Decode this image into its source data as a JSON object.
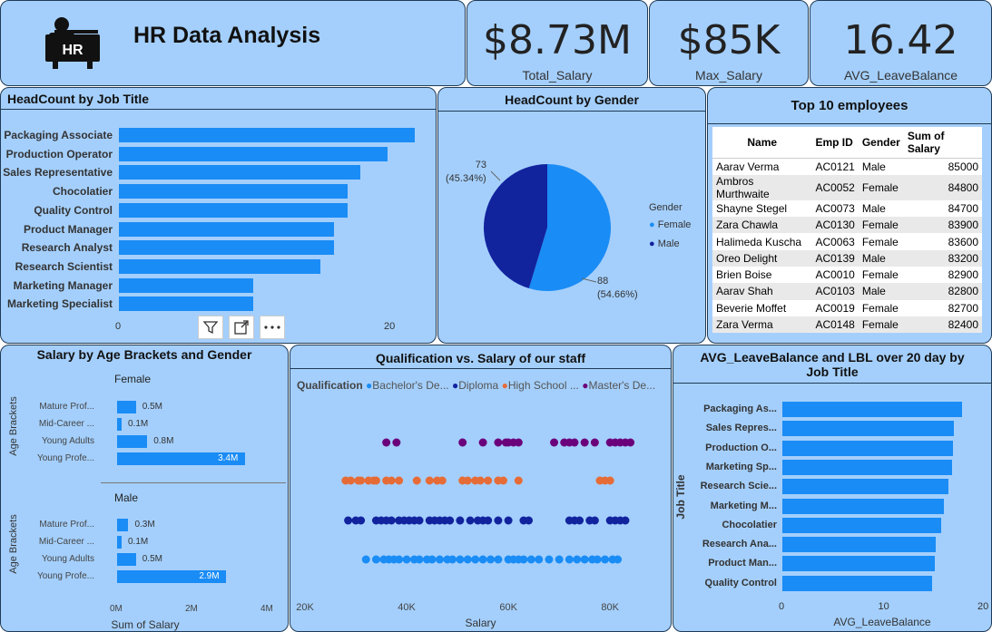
{
  "header": {
    "title": "HR Data Analysis",
    "icon": "hr-desk-icon"
  },
  "kpis": [
    {
      "value": "$8.73M",
      "label": "Total_Salary"
    },
    {
      "value": "$85K",
      "label": "Max_Salary"
    },
    {
      "value": "16.42",
      "label": "AVG_LeaveBalance"
    }
  ],
  "headcount_job": {
    "title": "HeadCount by Job Title",
    "ticks": [
      "0",
      "20"
    ],
    "chart_data": {
      "type": "bar",
      "categories": [
        "Packaging Associate",
        "Production Operator",
        "Sales Representative",
        "Chocolatier",
        "Quality Control",
        "Product Manager",
        "Research Analyst",
        "Research Scientist",
        "Marketing Manager",
        "Marketing Specialist"
      ],
      "values": [
        22,
        20,
        18,
        17,
        17,
        16,
        16,
        15,
        10,
        10
      ],
      "xlim": [
        0,
        25
      ]
    }
  },
  "gender": {
    "title": "HeadCount by Gender",
    "legend_title": "Gender",
    "chart_data": {
      "type": "pie",
      "labels": [
        "Female",
        "Male"
      ],
      "values": [
        88,
        73
      ],
      "percent_labels": [
        "(54.66%)",
        "(45.34%)"
      ],
      "colors": [
        "#1a8cf5",
        "#12239e"
      ]
    }
  },
  "top10": {
    "title": "Top 10 employees",
    "columns": [
      "Name",
      "Emp ID",
      "Gender",
      "Sum of Salary"
    ],
    "rows": [
      [
        "Aarav Verma",
        "AC0121",
        "Male",
        "85000"
      ],
      [
        "Ambros Murthwaite",
        "AC0052",
        "Female",
        "84800"
      ],
      [
        "Shayne Stegel",
        "AC0073",
        "Male",
        "84700"
      ],
      [
        "Zara Chawla",
        "AC0130",
        "Female",
        "83900"
      ],
      [
        "Halimeda Kuscha",
        "AC0063",
        "Female",
        "83600"
      ],
      [
        "Oreo Delight",
        "AC0139",
        "Male",
        "83200"
      ],
      [
        "Brien Boise",
        "AC0010",
        "Female",
        "82900"
      ],
      [
        "Aarav Shah",
        "AC0103",
        "Male",
        "82800"
      ],
      [
        "Beverie Moffet",
        "AC0019",
        "Female",
        "82700"
      ],
      [
        "Zara Verma",
        "AC0148",
        "Female",
        "82400"
      ]
    ]
  },
  "age_salary": {
    "title": "Salary by Age Brackets and Gender",
    "ylabel": "Age Brackets",
    "xlabel": "Sum of Salary",
    "ticks": [
      "0M",
      "2M",
      "4M"
    ],
    "chart_data": [
      {
        "type": "bar",
        "title": "Female",
        "categories": [
          "Mature Prof...",
          "Mid-Career ...",
          "Young Adults",
          "Young Profe..."
        ],
        "values": [
          0.5,
          0.1,
          0.8,
          3.4
        ],
        "labels": [
          "0.5M",
          "0.1M",
          "0.8M",
          "3.4M"
        ],
        "xlim": [
          0,
          4
        ]
      },
      {
        "type": "bar",
        "title": "Male",
        "categories": [
          "Mature Prof...",
          "Mid-Career ...",
          "Young Adults",
          "Young Profe..."
        ],
        "values": [
          0.3,
          0.1,
          0.5,
          2.9
        ],
        "labels": [
          "0.3M",
          "0.1M",
          "0.5M",
          "2.9M"
        ],
        "xlim": [
          0,
          4
        ]
      }
    ]
  },
  "qual": {
    "title": "Qualification vs. Salary of our staff",
    "legend_title": "Qualification",
    "xlabel": "Salary",
    "ticks": [
      "20K",
      "40K",
      "60K",
      "80K"
    ],
    "chart_data": {
      "type": "scatter",
      "xlim": [
        20000,
        88000
      ],
      "series": [
        {
          "name": "Master's De...",
          "color": "#6b007b",
          "x": [
            36000,
            38000,
            51000,
            55000,
            58000,
            59500,
            60000,
            61000,
            62000,
            69000,
            71000,
            72000,
            73000,
            75000,
            77000,
            80000,
            81000,
            82000,
            83000,
            84000
          ]
        },
        {
          "name": "High School ...",
          "color": "#e66c37",
          "x": [
            28000,
            29000,
            30500,
            31000,
            32500,
            33500,
            34000,
            36000,
            37000,
            38500,
            42000,
            44500,
            46000,
            47000,
            51000,
            52000,
            53500,
            54500,
            56000,
            58000,
            59000,
            62000,
            78000,
            79000,
            80000
          ]
        },
        {
          "name": "Diploma",
          "color": "#12239e",
          "x": [
            28500,
            30000,
            31000,
            34000,
            35000,
            36000,
            37000,
            38500,
            39500,
            40500,
            41500,
            42500,
            44500,
            45500,
            46500,
            47500,
            48500,
            50500,
            52500,
            54000,
            55000,
            56000,
            58000,
            60000,
            63000,
            64000,
            72000,
            73000,
            74000,
            76000,
            77000,
            80000,
            81000,
            82000,
            83000
          ]
        },
        {
          "name": "Bachelor's De...",
          "color": "#1a8cf5",
          "x": [
            32000,
            34000,
            35500,
            36500,
            37500,
            38500,
            40000,
            41500,
            42500,
            44000,
            45000,
            46500,
            48000,
            49000,
            50500,
            52000,
            53500,
            55000,
            56500,
            58000,
            60000,
            61000,
            62000,
            63000,
            64500,
            66000,
            68000,
            70000,
            72000,
            73500,
            75000,
            76500,
            77500,
            79000,
            80500,
            81500
          ]
        }
      ]
    }
  },
  "leave": {
    "title": "AVG_LeaveBalance and LBL over 20 day by Job Title",
    "ylabel": "Job Title",
    "xlabel": "AVG_LeaveBalance",
    "ticks": [
      "0",
      "10",
      "20"
    ],
    "chart_data": {
      "type": "bar",
      "categories": [
        "Packaging As...",
        "Sales Repres...",
        "Production O...",
        "Marketing Sp...",
        "Research Scie...",
        "Marketing M...",
        "Chocolatier",
        "Research Ana...",
        "Product Man...",
        "Quality Control"
      ],
      "values": [
        18.1,
        17.3,
        17.2,
        17.1,
        16.7,
        16.3,
        16.0,
        15.4,
        15.3,
        15.1
      ],
      "xlim": [
        0,
        20
      ]
    }
  }
}
